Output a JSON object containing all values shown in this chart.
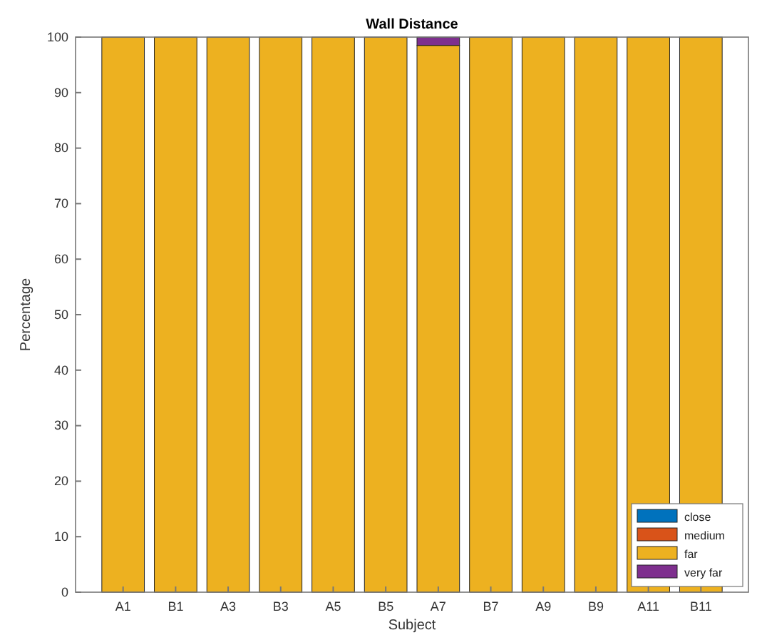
{
  "chart_data": {
    "type": "bar",
    "title": "Wall Distance",
    "xlabel": "Subject",
    "ylabel": "Percentage",
    "categories": [
      "A1",
      "B1",
      "A3",
      "B3",
      "A5",
      "B5",
      "A7",
      "B7",
      "A9",
      "B9",
      "A11",
      "B11"
    ],
    "stacked": true,
    "ylim": [
      0,
      100
    ],
    "yticks": [
      0,
      10,
      20,
      30,
      40,
      50,
      60,
      70,
      80,
      90,
      100
    ],
    "grid": false,
    "legend": "bottom right",
    "series": [
      {
        "name": "close",
        "color": "#0072bd",
        "values": [
          0,
          0,
          0,
          0,
          0,
          0,
          0,
          0,
          0,
          0,
          0,
          0
        ]
      },
      {
        "name": "medium",
        "color": "#d95319",
        "values": [
          0,
          0,
          0,
          0,
          0,
          0,
          0,
          0,
          0,
          0,
          0,
          0
        ]
      },
      {
        "name": "far",
        "color": "#edb120",
        "values": [
          100,
          100,
          100,
          100,
          100,
          100,
          98.5,
          100,
          100,
          100,
          100,
          100
        ]
      },
      {
        "name": "very far",
        "color": "#7e2f8e",
        "values": [
          0,
          0,
          0,
          0,
          0,
          0,
          1.5,
          0,
          0,
          0,
          0,
          0
        ]
      }
    ]
  }
}
